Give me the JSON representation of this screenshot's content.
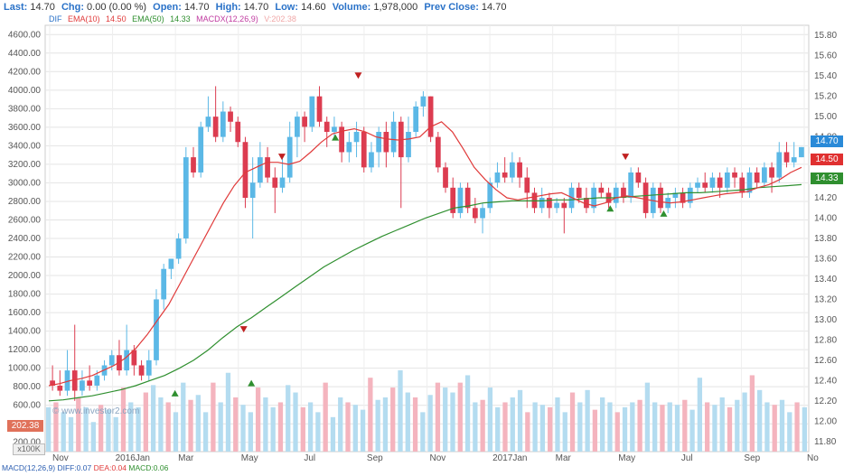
{
  "quote": {
    "last_label": "Last:",
    "last": "14.70",
    "chg_label": "Chg:",
    "chg": "0.00 (0.00 %)",
    "open_label": "Open:",
    "open": "14.70",
    "high_label": "High:",
    "high": "14.70",
    "low_label": "Low:",
    "low": "14.60",
    "volume_label": "Volume:",
    "volume": "1,978,000",
    "prev_close_label": "Prev Close:",
    "prev_close": "14.70"
  },
  "legend": {
    "dif": "DIF",
    "ema10": "EMA(10)",
    "ema10_value": "14.50",
    "ema50": "EMA(50)",
    "ema50_value": "14.33",
    "macdx": "MACDX(12,26,9)",
    "vol": "V:202.38"
  },
  "colors": {
    "up": "#5bb8e6",
    "down": "#dc3c50",
    "vol_up": "#b4dcf0",
    "vol_down": "#f4b4be",
    "ema10": "#e03a3a",
    "ema50": "#2f8f2f",
    "badge_last": "#2a8ad8",
    "badge_ema10": "#e03030",
    "badge_ema50": "#2f8f2f"
  },
  "badges": {
    "last": "14.70",
    "ema10": "14.50",
    "ema50": "14.33",
    "volume": "202.38"
  },
  "volume_unit": "x100K",
  "watermark": "© www.investor2.com",
  "macd": {
    "label": "MACD(12,26,9)",
    "diff": "DIFF:0.07",
    "dea": "DEA:0.04",
    "macd": "MACD:0.06"
  },
  "chart_data": {
    "type": "candlestick",
    "x_labels": [
      "Nov",
      "2016Jan",
      "Mar",
      "May",
      "Jul",
      "Sep",
      "Nov",
      "2017Jan",
      "Mar",
      "May",
      "Jul",
      "Sep",
      "No"
    ],
    "price_axis": {
      "ticks": [
        "15.80",
        "15.60",
        "15.40",
        "15.20",
        "15.00",
        "14.80",
        "14.60",
        "14.40",
        "14.20",
        "14.00",
        "13.80",
        "13.60",
        "13.40",
        "13.20",
        "13.00",
        "12.80",
        "12.60",
        "12.40",
        "12.20",
        "12.00",
        "11.80"
      ],
      "range": [
        11.7,
        15.9
      ]
    },
    "left_axis": {
      "ticks": [
        "4600.00",
        "4400.00",
        "4200.00",
        "4000.00",
        "3800.00",
        "3600.00",
        "3400.00",
        "3200.00",
        "3000.00",
        "2800.00",
        "2600.00",
        "2400.00",
        "2200.00",
        "2000.00",
        "1800.00",
        "1600.00",
        "1400.00",
        "1200.00",
        "1000.00",
        "800.00",
        "600.00",
        "400.00",
        "200.00"
      ],
      "range": [
        100,
        4700
      ]
    },
    "candles": [
      [
        12.4,
        12.35,
        12.55,
        12.3
      ],
      [
        12.35,
        12.3,
        12.5,
        12.25
      ],
      [
        12.3,
        12.5,
        12.7,
        12.25
      ],
      [
        12.5,
        12.3,
        12.95,
        12.2
      ],
      [
        12.3,
        12.4,
        12.5,
        12.25
      ],
      [
        12.4,
        12.35,
        12.55,
        12.3
      ],
      [
        12.35,
        12.45,
        12.5,
        12.3
      ],
      [
        12.45,
        12.55,
        12.6,
        12.4
      ],
      [
        12.55,
        12.65,
        12.7,
        12.5
      ],
      [
        12.65,
        12.5,
        12.8,
        12.45
      ],
      [
        12.5,
        12.7,
        12.95,
        12.45
      ],
      [
        12.7,
        12.55,
        12.75,
        12.45
      ],
      [
        12.55,
        12.45,
        12.6,
        12.4
      ],
      [
        12.45,
        12.6,
        12.7,
        12.4
      ],
      [
        12.6,
        13.2,
        13.3,
        12.55
      ],
      [
        13.2,
        13.5,
        13.55,
        13.1
      ],
      [
        13.5,
        13.6,
        13.6,
        13.4
      ],
      [
        13.6,
        13.8,
        13.85,
        13.55
      ],
      [
        13.8,
        14.6,
        14.7,
        13.75
      ],
      [
        14.6,
        14.45,
        14.7,
        14.4
      ],
      [
        14.45,
        14.9,
        14.95,
        14.4
      ],
      [
        14.9,
        15.0,
        15.2,
        14.85
      ],
      [
        15.0,
        14.8,
        15.3,
        14.75
      ],
      [
        14.8,
        15.05,
        15.15,
        14.75
      ],
      [
        15.05,
        14.95,
        15.1,
        14.85
      ],
      [
        14.95,
        14.75,
        15.0,
        14.7
      ],
      [
        14.75,
        14.2,
        14.8,
        14.1
      ],
      [
        14.2,
        14.35,
        14.6,
        13.8
      ],
      [
        14.35,
        14.6,
        14.75,
        14.3
      ],
      [
        14.6,
        14.4,
        14.7,
        14.35
      ],
      [
        14.4,
        14.3,
        14.5,
        14.05
      ],
      [
        14.3,
        14.4,
        14.6,
        14.25
      ],
      [
        14.4,
        14.8,
        14.95,
        14.35
      ],
      [
        14.8,
        15.0,
        15.05,
        14.6
      ],
      [
        15.0,
        14.9,
        15.05,
        14.75
      ],
      [
        14.9,
        15.2,
        15.2,
        14.85
      ],
      [
        15.2,
        14.95,
        15.3,
        14.9
      ],
      [
        14.95,
        14.85,
        15.0,
        14.7
      ],
      [
        14.85,
        14.9,
        15.0,
        14.8
      ],
      [
        14.9,
        14.65,
        14.95,
        14.55
      ],
      [
        14.65,
        14.75,
        14.85,
        14.55
      ],
      [
        14.75,
        14.85,
        14.95,
        14.6
      ],
      [
        14.85,
        14.5,
        14.9,
        14.45
      ],
      [
        14.5,
        14.65,
        14.75,
        14.45
      ],
      [
        14.65,
        14.85,
        14.9,
        14.5
      ],
      [
        14.85,
        14.65,
        14.95,
        14.5
      ],
      [
        14.65,
        14.95,
        15.05,
        14.6
      ],
      [
        14.95,
        14.6,
        15.0,
        14.1
      ],
      [
        14.6,
        14.85,
        15.0,
        14.55
      ],
      [
        14.85,
        15.1,
        15.15,
        14.8
      ],
      [
        15.1,
        15.2,
        15.25,
        15.0
      ],
      [
        15.2,
        14.8,
        15.2,
        14.75
      ],
      [
        14.8,
        14.5,
        14.85,
        14.45
      ],
      [
        14.5,
        14.3,
        14.55,
        14.25
      ],
      [
        14.3,
        14.05,
        14.4,
        14.0
      ],
      [
        14.05,
        14.3,
        14.35,
        14.0
      ],
      [
        14.3,
        14.1,
        14.35,
        14.05
      ],
      [
        14.1,
        14.0,
        14.2,
        13.95
      ],
      [
        14.0,
        14.1,
        14.15,
        13.85
      ],
      [
        14.1,
        14.35,
        14.4,
        14.05
      ],
      [
        14.35,
        14.45,
        14.55,
        14.3
      ],
      [
        14.45,
        14.4,
        14.6,
        14.35
      ],
      [
        14.4,
        14.55,
        14.65,
        14.35
      ],
      [
        14.55,
        14.4,
        14.6,
        14.3
      ],
      [
        14.4,
        14.25,
        14.5,
        14.1
      ],
      [
        14.25,
        14.1,
        14.3,
        14.05
      ],
      [
        14.1,
        14.2,
        14.3,
        14.05
      ],
      [
        14.2,
        14.1,
        14.25,
        14.0
      ],
      [
        14.1,
        14.15,
        14.2,
        14.05
      ],
      [
        14.15,
        14.1,
        14.2,
        13.85
      ],
      [
        14.1,
        14.3,
        14.35,
        14.05
      ],
      [
        14.3,
        14.2,
        14.35,
        14.15
      ],
      [
        14.2,
        14.1,
        14.3,
        14.05
      ],
      [
        14.1,
        14.3,
        14.35,
        14.05
      ],
      [
        14.3,
        14.25,
        14.35,
        14.2
      ],
      [
        14.25,
        14.15,
        14.3,
        14.1
      ],
      [
        14.15,
        14.3,
        14.35,
        14.1
      ],
      [
        14.3,
        14.2,
        14.35,
        14.15
      ],
      [
        14.2,
        14.45,
        14.5,
        14.15
      ],
      [
        14.45,
        14.35,
        14.5,
        14.3
      ],
      [
        14.35,
        14.05,
        14.4,
        14.0
      ],
      [
        14.05,
        14.3,
        14.35,
        14.0
      ],
      [
        14.3,
        14.1,
        14.35,
        14.05
      ],
      [
        14.1,
        14.2,
        14.25,
        14.05
      ],
      [
        14.2,
        14.25,
        14.3,
        14.1
      ],
      [
        14.25,
        14.15,
        14.3,
        14.1
      ],
      [
        14.15,
        14.3,
        14.35,
        14.1
      ],
      [
        14.3,
        14.35,
        14.4,
        14.25
      ],
      [
        14.35,
        14.3,
        14.45,
        14.25
      ],
      [
        14.3,
        14.4,
        14.45,
        14.25
      ],
      [
        14.4,
        14.3,
        14.45,
        14.2
      ],
      [
        14.3,
        14.45,
        14.5,
        14.25
      ],
      [
        14.45,
        14.4,
        14.5,
        14.3
      ],
      [
        14.4,
        14.25,
        14.45,
        14.2
      ],
      [
        14.25,
        14.45,
        14.5,
        14.2
      ],
      [
        14.45,
        14.35,
        14.5,
        14.3
      ],
      [
        14.35,
        14.5,
        14.55,
        14.3
      ],
      [
        14.5,
        14.4,
        14.55,
        14.25
      ],
      [
        14.4,
        14.65,
        14.75,
        14.35
      ],
      [
        14.65,
        14.55,
        14.75,
        14.5
      ],
      [
        14.55,
        14.6,
        14.75,
        14.5
      ],
      [
        14.6,
        14.7,
        14.7,
        14.6
      ]
    ],
    "ema10": [
      12.35,
      12.37,
      12.4,
      12.42,
      12.45,
      12.5,
      12.55,
      12.62,
      12.72,
      12.85,
      13.0,
      13.15,
      13.35,
      13.55,
      13.75,
      13.95,
      14.15,
      14.32,
      14.45,
      14.5,
      14.55,
      14.55,
      14.53,
      14.56,
      14.65,
      14.75,
      14.83,
      14.86,
      14.88,
      14.85,
      14.8,
      14.78,
      14.77,
      14.78,
      14.8,
      14.9,
      14.95,
      14.85,
      14.68,
      14.5,
      14.38,
      14.28,
      14.2,
      14.18,
      14.2,
      14.22,
      14.24,
      14.25,
      14.2,
      14.15,
      14.12,
      14.15,
      14.2,
      14.22,
      14.2,
      14.18,
      14.16,
      14.15,
      14.16,
      14.18,
      14.2,
      14.22,
      14.24,
      14.25,
      14.26,
      14.3,
      14.33,
      14.38,
      14.45,
      14.5
    ],
    "ema50": [
      12.2,
      12.21,
      12.23,
      12.25,
      12.28,
      12.31,
      12.35,
      12.4,
      12.45,
      12.52,
      12.6,
      12.7,
      12.82,
      12.93,
      13.02,
      13.12,
      13.22,
      13.32,
      13.42,
      13.52,
      13.6,
      13.68,
      13.75,
      13.82,
      13.88,
      13.94,
      14.0,
      14.05,
      14.1,
      14.12,
      14.15,
      14.16,
      14.17,
      14.17,
      14.17,
      14.18,
      14.18,
      14.19,
      14.2,
      14.2,
      14.21,
      14.22,
      14.23,
      14.24,
      14.25,
      14.25,
      14.26,
      14.27,
      14.28,
      14.3,
      14.31,
      14.32,
      14.33
    ],
    "volumes": [
      900,
      1000,
      800,
      700,
      1100,
      900,
      600,
      950,
      850,
      700,
      1300,
      1000,
      900,
      1200,
      1350,
      1100,
      1000,
      800,
      1400,
      1050,
      1150,
      800,
      1400,
      1000,
      1600,
      1100,
      950,
      800,
      1300,
      1100,
      900,
      1000,
      1350,
      1200,
      900,
      1000,
      800,
      1400,
      700,
      1100,
      1000,
      950,
      850,
      1500,
      1050,
      1100,
      1300,
      1650,
      1200,
      1100,
      800,
      1150,
      1400,
      1300,
      1200,
      1400,
      1550,
      1000,
      1050,
      1300,
      900,
      1000,
      1100,
      1250,
      800,
      1000,
      950,
      900,
      1100,
      800,
      1200,
      1000,
      1250,
      850,
      1100,
      1000,
      800,
      900,
      1000,
      1050,
      1400,
      1000,
      950,
      1000,
      950,
      1050,
      850,
      1500,
      1000,
      950,
      1100,
      900,
      1050,
      1200,
      1550,
      1250,
      1000,
      950,
      1050,
      800,
      1000,
      900
    ]
  }
}
